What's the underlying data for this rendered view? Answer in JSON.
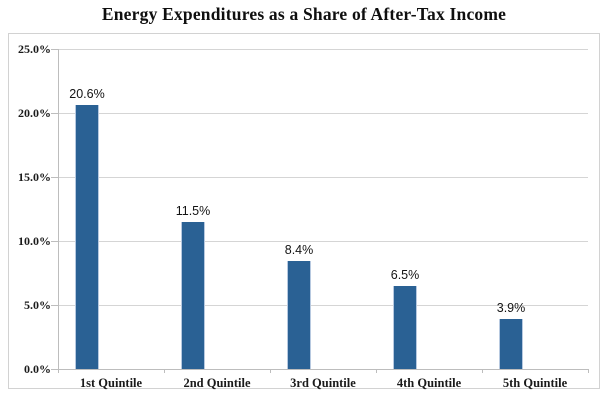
{
  "title": "Energy Expenditures as a Share of After-Tax Income",
  "chart_data": {
    "type": "bar",
    "title": "Energy Expenditures as a Share of After-Tax Income",
    "categories": [
      "1st Quintile",
      "2nd Quintile",
      "3rd Quintile",
      "4th Quintile",
      "5th Quintile"
    ],
    "values": [
      20.6,
      11.5,
      8.4,
      6.5,
      3.9
    ],
    "data_labels": [
      "20.6%",
      "11.5%",
      "8.4%",
      "6.5%",
      "3.9%"
    ],
    "xlabel": "",
    "ylabel": "",
    "ylim": [
      0,
      25
    ],
    "y_tick_step": 5,
    "y_ticks": [
      {
        "value": 25,
        "label": "25.0%"
      },
      {
        "value": 20,
        "label": "20.0%"
      },
      {
        "value": 15,
        "label": "15.0%"
      },
      {
        "value": 10,
        "label": "10.0%"
      },
      {
        "value": 5,
        "label": "5.0%"
      },
      {
        "value": 0,
        "label": "0.0%"
      }
    ],
    "grid": "horizontal",
    "legend": "none",
    "colors": {
      "bar_fill": "#2a6194",
      "bar_edge": "#b7c9e0",
      "gridline": "#d5d5d5",
      "axis_line": "#bdbdbd",
      "chart_border": "#d2d2d2",
      "label_text": "#1a1a1a"
    }
  }
}
